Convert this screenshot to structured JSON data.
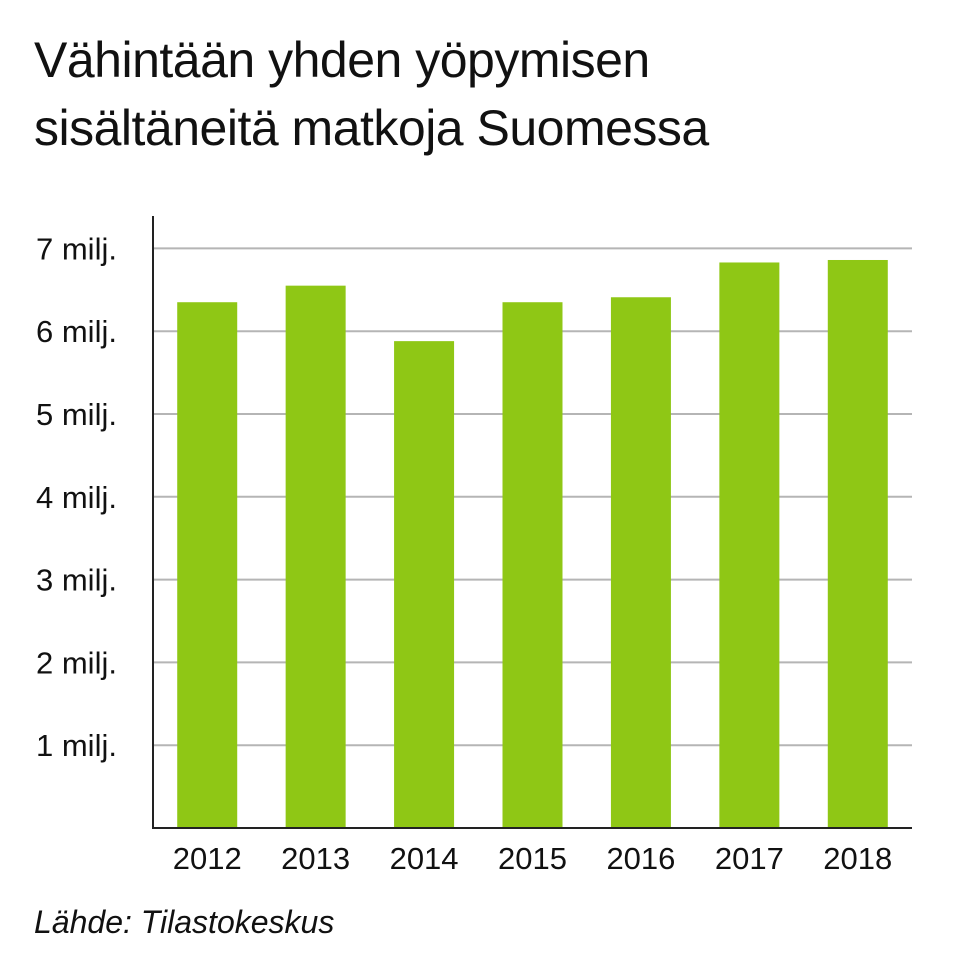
{
  "chart_data": {
    "type": "bar",
    "title": "Vähintään yhden yöpymisen sisältäneitä matkoja Suomessa",
    "title_lines": [
      "Vähintään yhden yöpymisen",
      "sisältäneitä matkoja Suomessa"
    ],
    "categories": [
      "2012",
      "2013",
      "2014",
      "2015",
      "2016",
      "2017",
      "2018"
    ],
    "values": [
      6.35,
      6.55,
      5.88,
      6.35,
      6.41,
      6.83,
      6.86
    ],
    "unit": "milj.",
    "ylim": [
      0,
      7
    ],
    "y_ticks": [
      {
        "value": 1,
        "label": "1 milj."
      },
      {
        "value": 2,
        "label": "2 milj."
      },
      {
        "value": 3,
        "label": "3 milj."
      },
      {
        "value": 4,
        "label": "4 milj."
      },
      {
        "value": 5,
        "label": "5 milj."
      },
      {
        "value": 6,
        "label": "6 milj."
      },
      {
        "value": 7,
        "label": "7 milj."
      }
    ],
    "grid": true,
    "legend": "none",
    "xlabel": "",
    "ylabel": "",
    "bar_color": "#8fc715",
    "grid_color": "#b5b5b5",
    "axis_color": "#222222"
  },
  "source": "Lähde: Tilastokeskus"
}
